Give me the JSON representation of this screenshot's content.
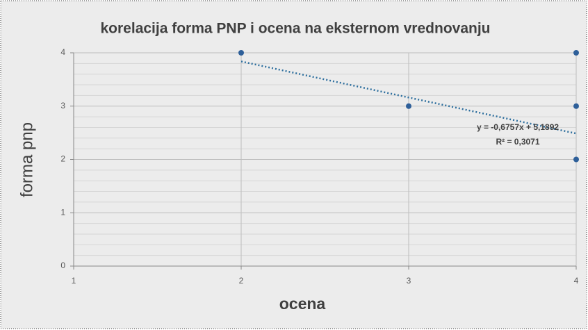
{
  "chart_data": {
    "type": "scatter",
    "title": "korelacija forma PNP i ocena na eksternom vrednovanju",
    "xlabel": "ocena",
    "ylabel": "forma pnp",
    "series": [
      {
        "name": "forma pnp",
        "color": "#2e5f99",
        "x": [
          2,
          3,
          4,
          4,
          4
        ],
        "values": [
          4,
          3,
          4,
          3,
          2
        ]
      }
    ],
    "xlim": [
      1,
      4
    ],
    "xticks": [
      1,
      2,
      3,
      4
    ],
    "ylim": [
      0,
      4
    ],
    "yticks": [
      0,
      1,
      2,
      3,
      4
    ],
    "grid": true,
    "trendline": {
      "slope": -0.6757,
      "intercept": 5.1892,
      "color": "#2e6f9e",
      "label": "y = -0,6757x + 5,1892",
      "r2": 0.3071,
      "r2_label": "R² = 0,3071"
    }
  }
}
